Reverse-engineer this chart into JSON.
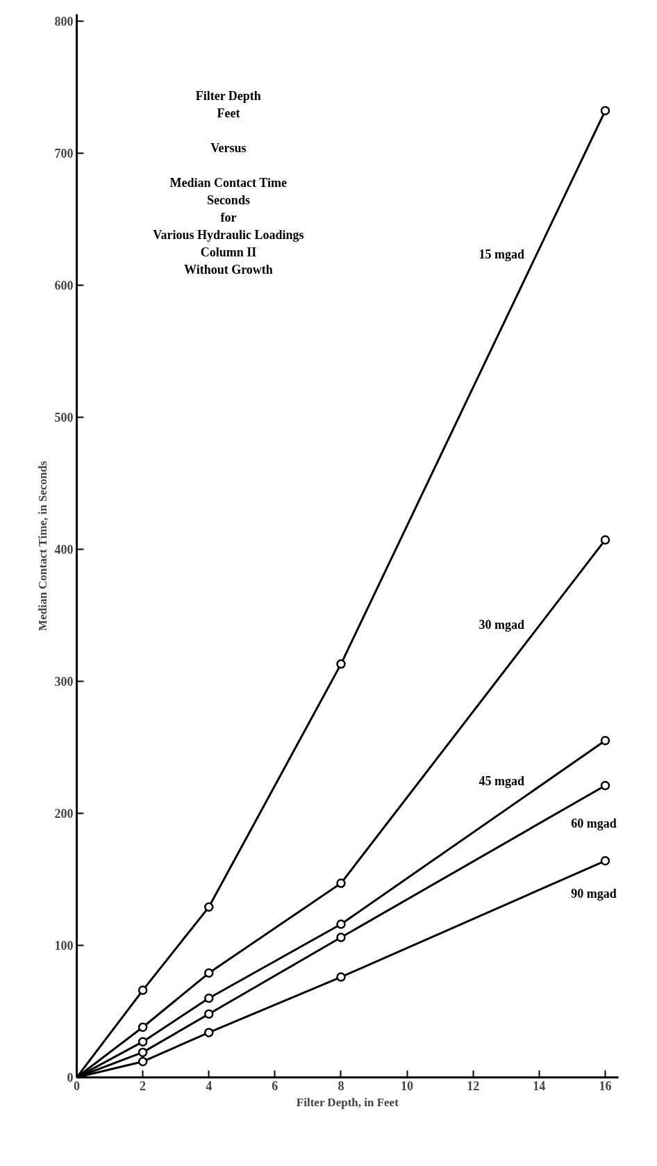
{
  "chart_data": {
    "type": "line",
    "title": "Filter Depth\nFeet\n\nVersus\n\nMedian Contact Time\nSeconds\nfor\nVarious Hydraulic Loadings\nColumn II\nWithout Growth",
    "xlabel": "Filter Depth, in Feet",
    "ylabel": "Median Contact Time, in Seconds",
    "x": [
      0,
      2,
      4,
      8,
      16
    ],
    "series": [
      {
        "name": "15 mgad",
        "color": "#000000",
        "values": [
          0,
          66,
          129,
          313,
          732
        ]
      },
      {
        "name": "30 mgad",
        "color": "#000000",
        "values": [
          0,
          38,
          79,
          147,
          407
        ]
      },
      {
        "name": "45 mgad",
        "color": "#000000",
        "values": [
          0,
          27,
          60,
          116,
          255
        ]
      },
      {
        "name": "60 mgad",
        "color": "#000000",
        "values": [
          0,
          19,
          48,
          106,
          221
        ]
      },
      {
        "name": "90 mgad",
        "color": "#000000",
        "values": [
          0,
          12,
          34,
          76,
          164
        ]
      }
    ],
    "xlim": [
      0,
      16.4
    ],
    "ylim": [
      0,
      805
    ],
    "xticks": [
      0,
      2,
      4,
      6,
      8,
      10,
      12,
      14,
      16
    ],
    "yticks": [
      0,
      100,
      200,
      300,
      400,
      500,
      600,
      700,
      800
    ],
    "grid": false,
    "marker": "circle",
    "line_style": "solid"
  }
}
